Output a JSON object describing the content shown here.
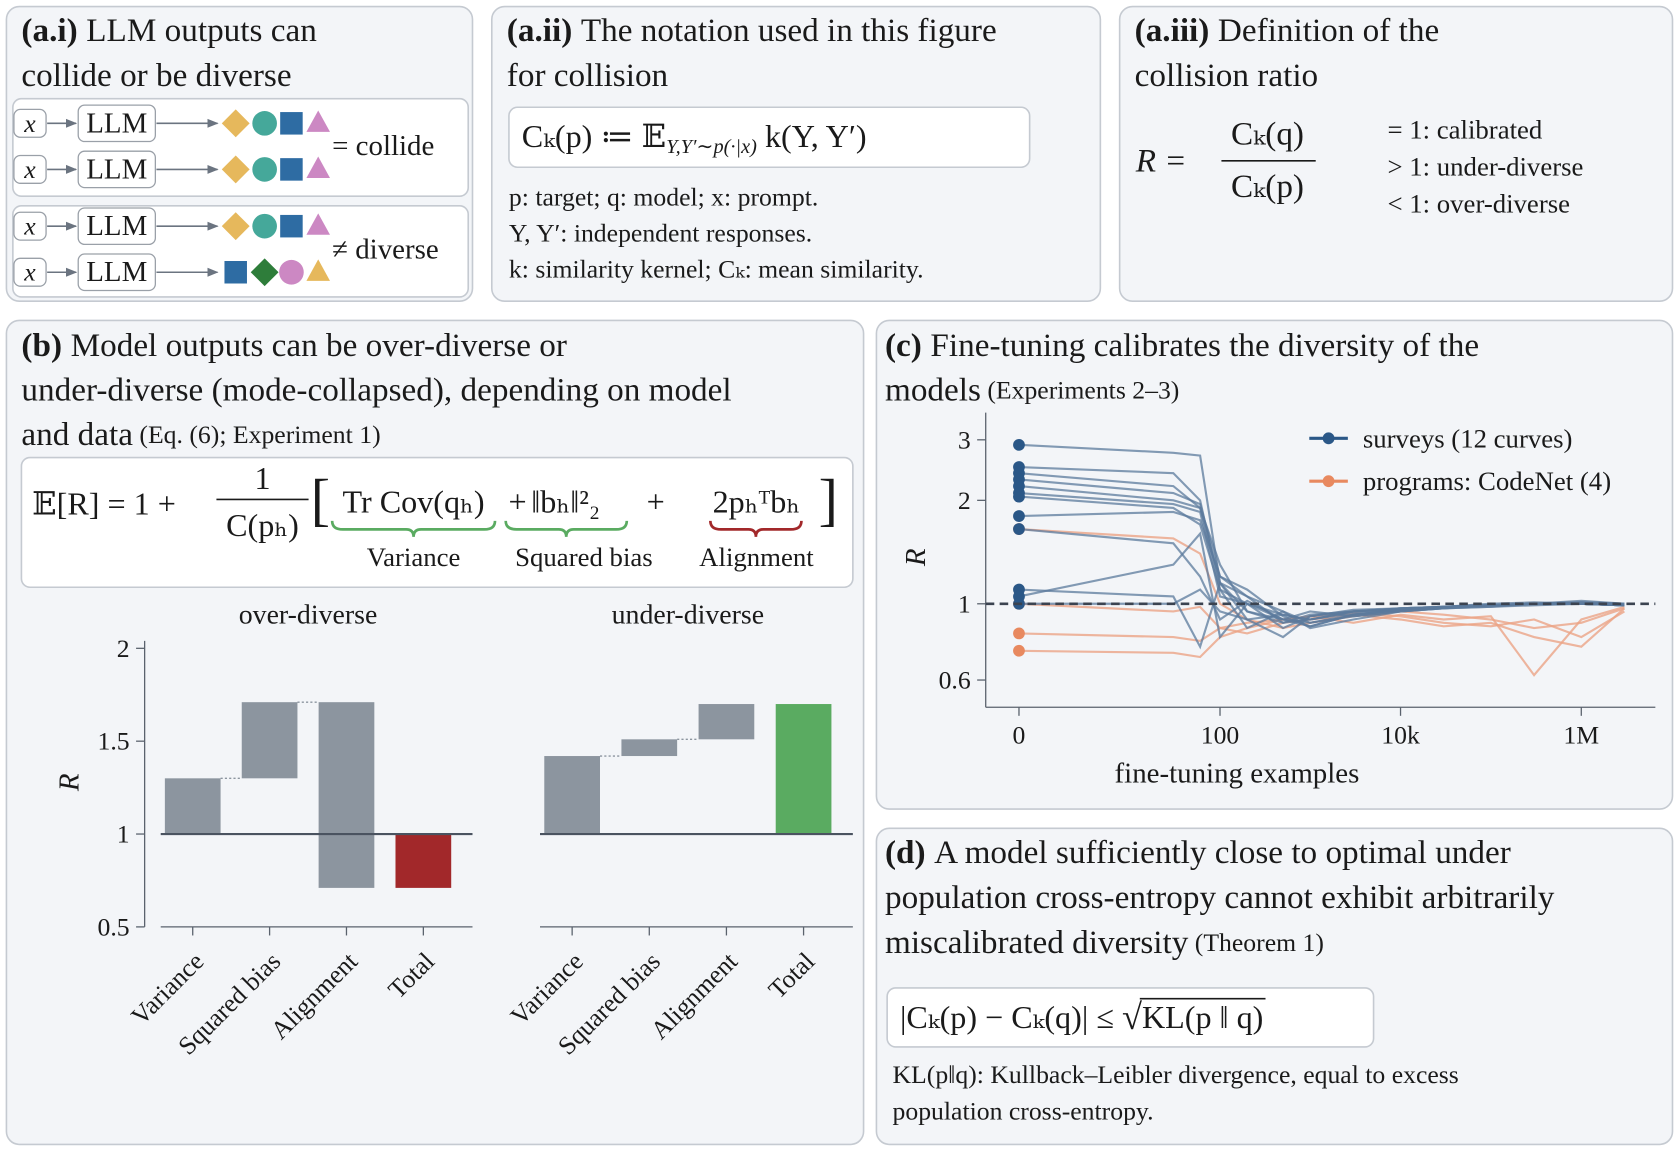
{
  "panels": {
    "a_i": {
      "label": "(a.i)",
      "title": [
        "LLM outputs can",
        "collide or be diverse"
      ],
      "input": "x",
      "model": "LLM",
      "collide": "= collide",
      "diverse": "≠ diverse"
    },
    "a_ii": {
      "label": "(a.ii)",
      "title": [
        "The notation used in this figure",
        "for collision"
      ],
      "formula": {
        "lhs": "Cₖ(p) ≔ 𝔼",
        "sub": "Y,Y′∼p(·|x)",
        "rhs": " k(Y, Y′)"
      },
      "notes": [
        "p: target; q: model; x: prompt.",
        "Y, Y′: independent responses.",
        "k: similarity kernel; Cₖ: mean similarity."
      ]
    },
    "a_iii": {
      "label": "(a.iii)",
      "title": [
        "Definition of the",
        "collision ratio"
      ],
      "lhs": "R =",
      "numerator": "Cₖ(q)",
      "denominator": "Cₖ(p)",
      "legend": [
        {
          "text": "= 1: calibrated",
          "color": "#1a1a1a"
        },
        {
          "text": "> 1: under-diverse",
          "color": "#5aab61"
        },
        {
          "text": "< 1: over-diverse",
          "color": "#a2282a"
        }
      ]
    },
    "b": {
      "label": "(b)",
      "title": [
        "Model outputs can be over-diverse or",
        "under-diverse (mode-collapsed), depending on model",
        "and data"
      ],
      "note": " (Eq. (6); Experiment 1)",
      "equation": {
        "lhs": "𝔼[R] = 1 +",
        "numerator": "1",
        "denominator": "C(pₕ)",
        "open": "[",
        "close": "]",
        "variance": "Tr Cov(qₕ)",
        "plus": "+",
        "bias": "‖bₕ‖²₂",
        "alignment": "2pₕᵀbₕ",
        "variance_label": "Variance",
        "bias_label": "Squared bias",
        "alignment_label": "Alignment"
      }
    },
    "c": {
      "label": "(c)",
      "title": [
        "Fine-tuning calibrates the diversity of the",
        "models"
      ],
      "note": " (Experiments 2–3)"
    },
    "d": {
      "label": "(d)",
      "title": [
        "A model sufficiently close to optimal under",
        "population cross-entropy cannot exhibit arbitrarily",
        "miscalibrated diversity"
      ],
      "note": " (Theorem 1)",
      "formula": {
        "lhs": "|Cₖ(p) − Cₖ(q)| ≤ ",
        "root": "√",
        "radicand": "KL(p ‖ q)"
      },
      "caption": [
        "KL(p‖q): Kullback–Leibler divergence, equal to excess",
        "population cross-entropy."
      ]
    }
  },
  "chart_data": [
    {
      "type": "waterfall",
      "title": "over-diverse",
      "title_color": "#a2282a",
      "ylabel": "R",
      "categories": [
        "Variance",
        "Squared bias",
        "Alignment",
        "Total"
      ],
      "values": [
        0.3,
        0.41,
        -1.0,
        -0.29
      ],
      "colors": [
        "#8c959f",
        "#8c959f",
        "#8c959f",
        "#a2282a"
      ],
      "baseline": 1,
      "ylim": [
        0.5,
        2
      ],
      "yticks": [
        0.5,
        1,
        1.5,
        2
      ]
    },
    {
      "type": "waterfall",
      "title": "under-diverse",
      "title_color": "#5aab61",
      "categories": [
        "Variance",
        "Squared bias",
        "Alignment",
        "Total"
      ],
      "values": [
        0.42,
        0.09,
        0.19,
        0.7
      ],
      "colors": [
        "#8c959f",
        "#8c959f",
        "#8c959f",
        "#5aab61"
      ],
      "baseline": 1,
      "ylim": [
        0.5,
        2
      ]
    },
    {
      "type": "line",
      "ylabel": "R",
      "xlabel": "fine-tuning examples",
      "xscale": "symlog",
      "yscale": "log",
      "xlim": [
        -0.8,
        6600000
      ],
      "ylim": [
        0.5,
        3.6
      ],
      "xticks": [
        0,
        100,
        {
          "value": 10000,
          "label": "10k"
        },
        {
          "value": 1000000,
          "label": "1M"
        }
      ],
      "yticks": [
        0.6,
        1,
        2,
        3
      ],
      "reference_line": 1,
      "legend": [
        {
          "name": "surveys (12 curves)",
          "color": "#2a5787",
          "line_color": "#5b7a9c"
        },
        {
          "name": "programs: CodeNet (4)",
          "color": "#e8895f",
          "line_color": "#eba486"
        }
      ],
      "x": [
        0,
        30,
        60,
        100,
        200,
        500,
        1000,
        3000,
        10000,
        30000,
        100000,
        300000,
        1000000,
        3000000
      ],
      "series": [
        {
          "group": 0,
          "values": [
            2.9,
            2.75,
            2.7,
            1.15,
            1.05,
            0.88,
            0.9,
            0.95,
            0.97,
            0.98,
            0.99,
            1.0,
            1.0,
            0.99
          ]
        },
        {
          "group": 0,
          "values": [
            2.5,
            2.4,
            2.0,
            1.1,
            1.0,
            0.85,
            0.92,
            0.96,
            0.97,
            0.98,
            1.0,
            1.01,
            1.0,
            0.99
          ]
        },
        {
          "group": 0,
          "values": [
            2.4,
            2.2,
            1.9,
            1.3,
            0.95,
            0.9,
            0.88,
            0.93,
            0.96,
            0.98,
            0.99,
            1.0,
            1.01,
            1.0
          ]
        },
        {
          "group": 0,
          "values": [
            2.3,
            2.1,
            1.95,
            1.2,
            1.05,
            0.95,
            0.85,
            0.9,
            0.95,
            0.97,
            0.99,
            1.0,
            1.0,
            0.99
          ]
        },
        {
          "group": 0,
          "values": [
            2.2,
            2.0,
            1.9,
            1.15,
            0.9,
            0.8,
            0.92,
            0.95,
            0.97,
            0.98,
            0.99,
            1.0,
            1.01,
            1.0
          ]
        },
        {
          "group": 0,
          "values": [
            2.1,
            1.95,
            1.85,
            1.05,
            1.0,
            0.93,
            0.9,
            0.94,
            0.96,
            0.97,
            0.98,
            1.0,
            1.0,
            0.99
          ]
        },
        {
          "group": 0,
          "values": [
            2.05,
            1.9,
            1.7,
            1.1,
            0.85,
            0.95,
            0.88,
            0.92,
            0.95,
            0.97,
            0.99,
            1.0,
            1.02,
            1.0
          ]
        },
        {
          "group": 0,
          "values": [
            1.8,
            1.85,
            1.75,
            1.2,
            1.1,
            0.92,
            0.86,
            0.93,
            0.96,
            0.98,
            0.99,
            1.0,
            1.0,
            0.99
          ]
        },
        {
          "group": 0,
          "values": [
            1.65,
            1.5,
            1.2,
            0.9,
            1.02,
            0.9,
            0.95,
            0.92,
            0.95,
            0.97,
            0.98,
            0.99,
            1.0,
            0.99
          ]
        },
        {
          "group": 0,
          "values": [
            1.1,
            1.05,
            0.75,
            1.15,
            0.95,
            0.88,
            0.93,
            0.95,
            0.96,
            0.98,
            0.99,
            1.0,
            1.0,
            0.99
          ]
        },
        {
          "group": 0,
          "values": [
            1.05,
            1.3,
            1.6,
            0.8,
            1.0,
            0.9,
            0.86,
            0.93,
            0.96,
            0.98,
            0.99,
            1.0,
            1.0,
            0.99
          ]
        },
        {
          "group": 0,
          "values": [
            1.0,
            1.0,
            1.1,
            0.95,
            0.9,
            0.93,
            0.9,
            0.95,
            0.97,
            0.98,
            0.99,
            1.0,
            1.0,
            0.99
          ]
        },
        {
          "group": 1,
          "values": [
            1.65,
            1.55,
            1.4,
            1.0,
            0.9,
            0.85,
            0.88,
            0.92,
            0.95,
            0.93,
            0.9,
            0.85,
            0.88,
            0.97
          ]
        },
        {
          "group": 1,
          "values": [
            1.0,
            0.95,
            0.98,
            0.85,
            0.88,
            0.9,
            0.92,
            0.88,
            0.93,
            0.9,
            0.92,
            0.62,
            0.9,
            0.98
          ]
        },
        {
          "group": 1,
          "values": [
            0.82,
            0.8,
            0.78,
            0.85,
            0.82,
            0.88,
            0.9,
            0.93,
            0.9,
            0.86,
            0.88,
            0.8,
            0.75,
            0.97
          ]
        },
        {
          "group": 1,
          "values": [
            0.73,
            0.72,
            0.7,
            0.8,
            0.85,
            0.9,
            0.92,
            0.94,
            0.92,
            0.88,
            0.86,
            0.9,
            0.8,
            0.95
          ]
        }
      ]
    }
  ]
}
